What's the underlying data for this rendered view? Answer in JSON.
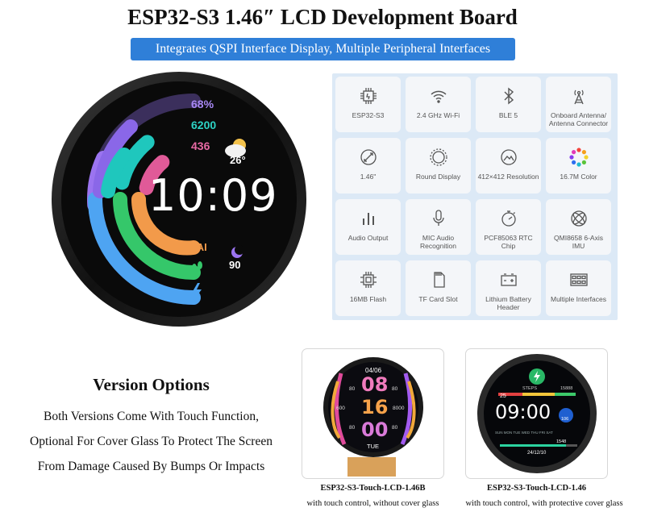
{
  "header": {
    "title": "ESP32-S3 1.46″ LCD Development Board",
    "subtitle": "Integrates QSPI Interface Display, Multiple Peripheral Interfaces"
  },
  "watch": {
    "battery": "68%",
    "steps": "6200",
    "calories": "436",
    "temperature": "26°",
    "time": "10:09",
    "pai_label": "PAI",
    "sleep_value": "90",
    "colors": {
      "purple": "#9b74f0",
      "teal": "#1fc7bd",
      "pink": "#e05a98",
      "orange": "#f29a4a",
      "green": "#35c76a",
      "blue": "#4ea4f2"
    }
  },
  "features": [
    {
      "label": "ESP32-S3",
      "icon": "chip-icon"
    },
    {
      "label": "2.4 GHz Wi-Fi",
      "icon": "wifi-icon"
    },
    {
      "label": "BLE 5",
      "icon": "bluetooth-icon"
    },
    {
      "label": "Onboard Antenna/ Antenna Connector",
      "icon": "antenna-icon"
    },
    {
      "label": "1.46\"",
      "icon": "diagonal-size-icon"
    },
    {
      "label": "Round Display",
      "icon": "round-display-icon"
    },
    {
      "label": "412×412 Resolution",
      "icon": "resolution-icon"
    },
    {
      "label": "16.7M Color",
      "icon": "color-wheel-icon"
    },
    {
      "label": "Audio Output",
      "icon": "audio-bars-icon"
    },
    {
      "label": "MIC Audio Recognition",
      "icon": "microphone-icon"
    },
    {
      "label": "PCF85063 RTC Chip",
      "icon": "stopwatch-icon"
    },
    {
      "label": "QMI8658 6-Axis IMU",
      "icon": "gyroscope-icon"
    },
    {
      "label": "16MB Flash",
      "icon": "flash-chip-icon"
    },
    {
      "label": "TF Card Slot",
      "icon": "sd-card-icon"
    },
    {
      "label": "Lithium Battery Header",
      "icon": "battery-icon"
    },
    {
      "label": "Multiple Interfaces",
      "icon": "interfaces-icon"
    }
  ],
  "versions": {
    "title": "Version Options",
    "lines": [
      "Both Versions Come With Touch Function,",
      "Optional For Cover Glass To Protect The Screen",
      "From Damage Caused By Bumps Or Impacts"
    ],
    "products": [
      {
        "name": "ESP32-S3-Touch-LCD-1.46B",
        "desc": "with touch control, without cover glass",
        "screen": {
          "date": "04/06",
          "hour": "08",
          "minute": "16",
          "second": "00",
          "day": "TUE",
          "left_top": "80",
          "left_mid": "600",
          "left_bot": "80",
          "right_top": "80",
          "right_mid": "8000",
          "right_bot": "80"
        }
      },
      {
        "name": "ESP32-S3-Touch-LCD-1.46",
        "desc": "with touch control, with protective cover glass",
        "screen": {
          "steps_label": "STEPS",
          "steps_value": "15888",
          "day_num": "25",
          "time": "09:00",
          "badge": "106",
          "weekdays": "SUN MON TUE WED THU FRI SAT",
          "progress": "1548",
          "date": "24/12/10"
        }
      }
    ]
  }
}
